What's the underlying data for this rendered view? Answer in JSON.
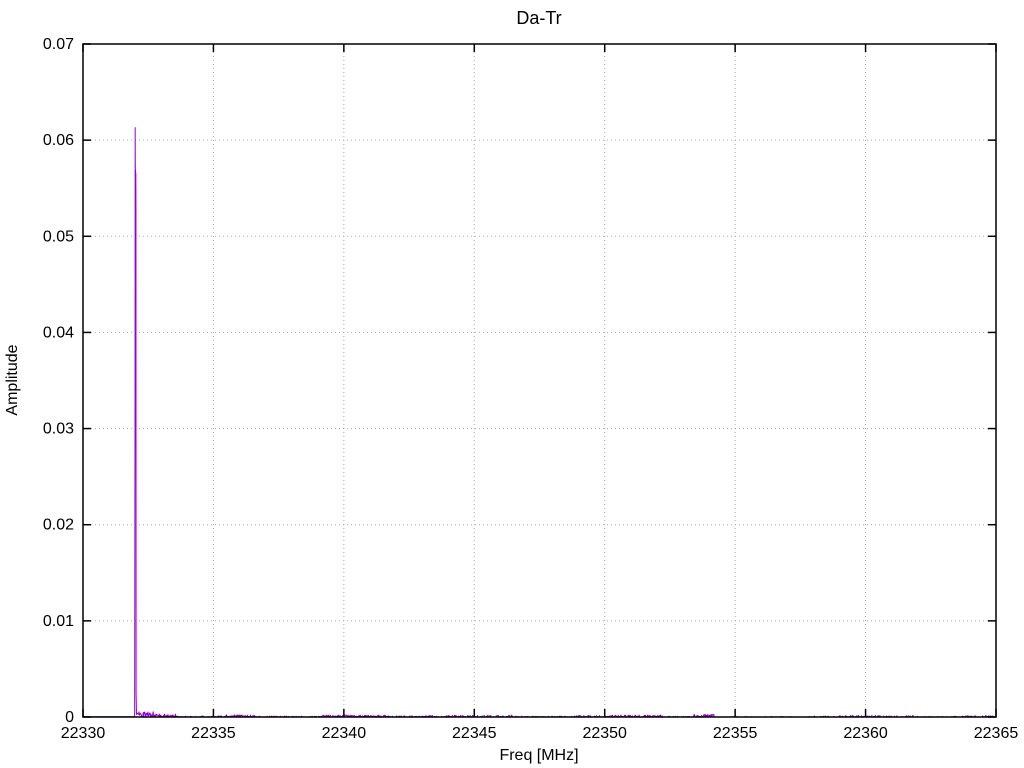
{
  "chart_data": {
    "type": "line",
    "title": "Da-Tr",
    "xlabel": "Freq [MHz]",
    "ylabel": "Amplitude",
    "xlim": [
      22330,
      22365
    ],
    "ylim": [
      0,
      0.07
    ],
    "xticks": [
      {
        "v": 22330,
        "label": "22330"
      },
      {
        "v": 22335,
        "label": "22335"
      },
      {
        "v": 22340,
        "label": "22340"
      },
      {
        "v": 22345,
        "label": "22345"
      },
      {
        "v": 22350,
        "label": "22350"
      },
      {
        "v": 22355,
        "label": "22355"
      },
      {
        "v": 22360,
        "label": "22360"
      },
      {
        "v": 22365,
        "label": "22365"
      }
    ],
    "yticks": [
      {
        "v": 0,
        "label": "0"
      },
      {
        "v": 0.01,
        "label": "0.01"
      },
      {
        "v": 0.02,
        "label": "0.02"
      },
      {
        "v": 0.03,
        "label": "0.03"
      },
      {
        "v": 0.04,
        "label": "0.04"
      },
      {
        "v": 0.05,
        "label": "0.05"
      },
      {
        "v": 0.06,
        "label": "0.06"
      },
      {
        "v": 0.07,
        "label": "0.07"
      }
    ],
    "grid": true,
    "legend": false,
    "colors": {
      "line": "#9400d3",
      "grid": "#aaaaaa",
      "border": "#000000",
      "text": "#000000",
      "background": "#ffffff"
    },
    "series": [
      {
        "name": "Da-Tr",
        "peak": {
          "x": 22332.0,
          "y": 0.0613
        },
        "baseline": 3e-05,
        "spike_points": [
          [
            22331.975,
            5e-05
          ],
          [
            22331.98,
            0.0003
          ],
          [
            22331.995,
            0.0325
          ],
          [
            22332.0,
            0.0613
          ],
          [
            22332.01,
            0.0527
          ],
          [
            22332.015,
            0.0569
          ],
          [
            22332.02,
            0.0525
          ],
          [
            22332.025,
            0.0566
          ],
          [
            22332.03,
            0.053
          ],
          [
            22332.035,
            0.0025
          ],
          [
            22332.048,
            0.0006
          ]
        ],
        "noise_segments": [
          [
            22332.05,
            22332.7,
            0.0006,
            0.95
          ],
          [
            22332.7,
            22333.6,
            0.0003,
            0.75
          ],
          [
            22333.6,
            22335.4,
            0.00012,
            0.45
          ],
          [
            22335.4,
            22336.6,
            0.00022,
            0.8
          ],
          [
            22336.6,
            22339.2,
            0.0001,
            0.4
          ],
          [
            22339.2,
            22341.6,
            0.0002,
            0.7
          ],
          [
            22341.6,
            22343.2,
            0.00012,
            0.5
          ],
          [
            22343.2,
            22345.3,
            0.00018,
            0.55
          ],
          [
            22345.3,
            22346.6,
            0.0002,
            0.6
          ],
          [
            22346.6,
            22348.9,
            0.0001,
            0.35
          ],
          [
            22348.9,
            22350.1,
            0.00016,
            0.55
          ],
          [
            22350.1,
            22352.3,
            0.0002,
            0.6
          ],
          [
            22352.3,
            22353.4,
            8e-05,
            0.25
          ],
          [
            22353.4,
            22354.2,
            0.00028,
            0.8
          ],
          [
            22354.2,
            22357.8,
            5e-05,
            0.15
          ],
          [
            22357.8,
            22359.0,
            0.0001,
            0.3
          ],
          [
            22359.0,
            22361.9,
            0.00016,
            0.55
          ],
          [
            22361.9,
            22363.3,
            6e-05,
            0.2
          ],
          [
            22363.3,
            22365.0,
            0.00014,
            0.45
          ]
        ],
        "noise_seed": 42,
        "noise_step_mhz": 0.02
      }
    ]
  }
}
